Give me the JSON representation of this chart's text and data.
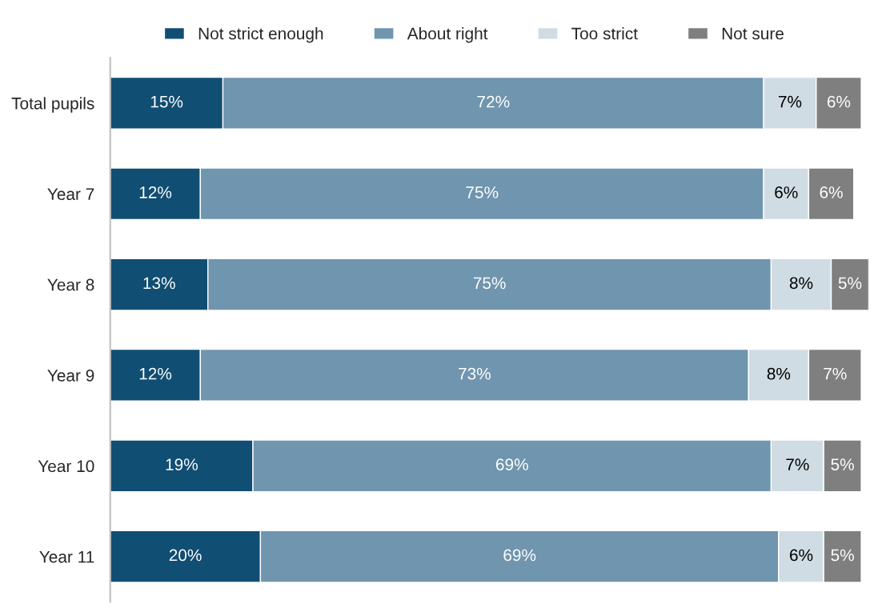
{
  "chart_data": {
    "type": "bar",
    "orientation": "horizontal",
    "stacked": true,
    "legend": "top",
    "grid": false,
    "categories": [
      "Total pupils",
      "Year 7",
      "Year 8",
      "Year 9",
      "Year 10",
      "Year 11"
    ],
    "series": [
      {
        "name": "Not strict enough",
        "color": "#114e73",
        "values": [
          15,
          12,
          13,
          12,
          19,
          20
        ],
        "value_labels": [
          "15%",
          "12%",
          "13%",
          "12%",
          "19%",
          "20%"
        ]
      },
      {
        "name": "About right",
        "color": "#7095ae",
        "values": [
          72,
          75,
          75,
          73,
          69,
          69
        ],
        "value_labels": [
          "72%",
          "75%",
          "75%",
          "73%",
          "69%",
          "69%"
        ]
      },
      {
        "name": "Too strict",
        "color": "#d0dce4",
        "values": [
          7,
          6,
          8,
          8,
          7,
          6
        ],
        "value_labels": [
          "7%",
          "6%",
          "8%",
          "8%",
          "7%",
          "6%"
        ]
      },
      {
        "name": "Not sure",
        "color": "#7f7f7f",
        "values": [
          6,
          6,
          5,
          7,
          5,
          5
        ],
        "value_labels": [
          "6%",
          "6%",
          "5%",
          "7%",
          "5%",
          "5%"
        ]
      }
    ]
  }
}
